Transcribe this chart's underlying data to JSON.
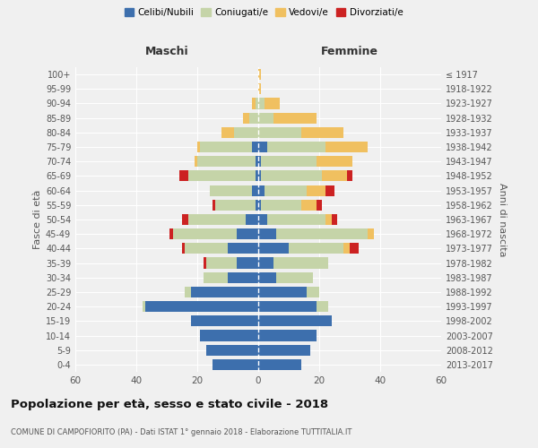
{
  "age_groups": [
    "0-4",
    "5-9",
    "10-14",
    "15-19",
    "20-24",
    "25-29",
    "30-34",
    "35-39",
    "40-44",
    "45-49",
    "50-54",
    "55-59",
    "60-64",
    "65-69",
    "70-74",
    "75-79",
    "80-84",
    "85-89",
    "90-94",
    "95-99",
    "100+"
  ],
  "birth_years": [
    "2013-2017",
    "2008-2012",
    "2003-2007",
    "1998-2002",
    "1993-1997",
    "1988-1992",
    "1983-1987",
    "1978-1982",
    "1973-1977",
    "1968-1972",
    "1963-1967",
    "1958-1962",
    "1953-1957",
    "1948-1952",
    "1943-1947",
    "1938-1942",
    "1933-1937",
    "1928-1932",
    "1923-1927",
    "1918-1922",
    "≤ 1917"
  ],
  "maschi": {
    "celibi": [
      15,
      17,
      19,
      22,
      37,
      22,
      10,
      7,
      10,
      7,
      4,
      1,
      2,
      1,
      1,
      2,
      0,
      0,
      0,
      0,
      0
    ],
    "coniugati": [
      0,
      0,
      0,
      0,
      1,
      2,
      8,
      10,
      14,
      21,
      19,
      13,
      14,
      22,
      19,
      17,
      8,
      3,
      1,
      0,
      0
    ],
    "vedovi": [
      0,
      0,
      0,
      0,
      0,
      0,
      0,
      0,
      0,
      0,
      0,
      0,
      0,
      0,
      1,
      1,
      4,
      2,
      1,
      0,
      0
    ],
    "divorziati": [
      0,
      0,
      0,
      0,
      0,
      0,
      0,
      1,
      1,
      1,
      2,
      1,
      0,
      3,
      0,
      0,
      0,
      0,
      0,
      0,
      0
    ]
  },
  "femmine": {
    "nubili": [
      14,
      17,
      19,
      24,
      19,
      16,
      6,
      5,
      10,
      6,
      3,
      1,
      2,
      1,
      1,
      3,
      0,
      0,
      0,
      0,
      0
    ],
    "coniugate": [
      0,
      0,
      0,
      0,
      4,
      4,
      12,
      18,
      18,
      30,
      19,
      13,
      14,
      20,
      18,
      19,
      14,
      5,
      2,
      0,
      0
    ],
    "vedove": [
      0,
      0,
      0,
      0,
      0,
      0,
      0,
      0,
      2,
      2,
      2,
      5,
      6,
      8,
      12,
      14,
      14,
      14,
      5,
      1,
      1
    ],
    "divorziate": [
      0,
      0,
      0,
      0,
      0,
      0,
      0,
      0,
      3,
      0,
      2,
      2,
      3,
      2,
      0,
      0,
      0,
      0,
      0,
      0,
      0
    ]
  },
  "colors": {
    "celibi": "#3d6fad",
    "coniugati": "#c5d4a8",
    "vedovi": "#f0c060",
    "divorziati": "#cc2222"
  },
  "xlim": 60,
  "title": "Popolazione per età, sesso e stato civile - 2018",
  "subtitle": "COMUNE DI CAMPOFIORITO (PA) - Dati ISTAT 1° gennaio 2018 - Elaborazione TUTTITALIA.IT",
  "ylabel_left": "Fasce di età",
  "ylabel_right": "Anni di nascita",
  "xlabel_left": "Maschi",
  "xlabel_right": "Femmine",
  "legend_labels": [
    "Celibi/Nubili",
    "Coniugati/e",
    "Vedovi/e",
    "Divorziati/e"
  ],
  "bg_color": "#f0f0f0",
  "bar_height": 0.75
}
